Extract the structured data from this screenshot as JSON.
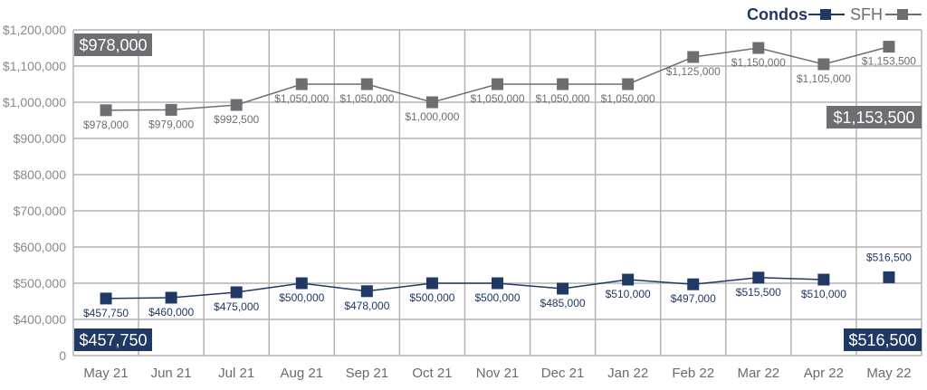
{
  "chart_data": {
    "type": "line",
    "title": "",
    "xlabel": "",
    "ylabel": "",
    "categories": [
      "May 21",
      "Jun  21",
      "Jul 21",
      "Aug 21",
      "Sep 21",
      "Oct 21",
      "Nov 21",
      "Dec 21",
      "Jan 22",
      "Feb 22",
      "Mar 22",
      "Apr 22",
      "May 22"
    ],
    "y_ticks": [
      0,
      400000,
      500000,
      600000,
      700000,
      800000,
      900000,
      1000000,
      1100000,
      1200000
    ],
    "y_tick_labels": [
      "0",
      "$400,000",
      "$500,000",
      "$600,000",
      "$700,000",
      "$800,000",
      "$900,000",
      "$1,000,000",
      "$1,100,000",
      "$1,200,000"
    ],
    "ylim": [
      0,
      1200000
    ],
    "axis_break": "0 to 400,000 compressed",
    "grid": true,
    "legend_position": "top-right",
    "series": [
      {
        "name": "Condos",
        "color": "#1f3864",
        "values": [
          457750,
          460000,
          475000,
          500000,
          478000,
          500000,
          500000,
          485000,
          510000,
          497000,
          515500,
          510000,
          516500
        ],
        "labels": [
          "$457,750",
          "$460,000",
          "$475,000",
          "$500,000",
          "$478,000",
          "$500,000",
          "$500,000",
          "$485,000",
          "$510,000",
          "$497,000",
          "$515,500",
          "$510,000",
          "$516,500"
        ],
        "start_callout": "$457,750",
        "end_callout": "$516,500"
      },
      {
        "name": "SFH",
        "color": "#6d6e71",
        "values": [
          978000,
          979000,
          992500,
          1050000,
          1050000,
          1000000,
          1050000,
          1050000,
          1050000,
          1125000,
          1150000,
          1105000,
          1153500
        ],
        "labels": [
          "$978,000",
          "$979,000",
          "$992,500",
          "$1,050,000",
          "$1,050,000",
          "$1,000,000",
          "$1,050,000",
          "$1,050,000",
          "$1,050,000",
          "$1,125,000",
          "$1,150,000",
          "$1,105,000",
          "$1,153,500"
        ],
        "start_callout": "$978,000",
        "end_callout": "$1,153,500"
      }
    ]
  }
}
